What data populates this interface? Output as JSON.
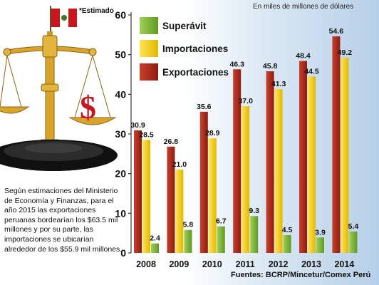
{
  "header": {
    "estimado_note": "*Estimado",
    "units": "En miles de millones de dólares"
  },
  "note_text": "Según estimaciones del Ministerio de Economía y Finanzas, para el año 2015 las exportaciones peruanas bordearían los $63.5 mil millones y por su parte, las importaciones se ubicarían alrededor de los $55.9 mil millones.",
  "source": "Fuentes: BCRP/Mincetur/Comex Perú",
  "illustration": {
    "icon": "scale-with-dollar-and-peru-flag-icon"
  },
  "chart_data": {
    "type": "bar",
    "categories": [
      "2008",
      "2009",
      "2010",
      "2011",
      "2012",
      "2013",
      "2014"
    ],
    "series": [
      {
        "name": "Exportaciones",
        "color": "#b32a1c",
        "values": [
          30.9,
          26.8,
          35.6,
          46.3,
          45.8,
          48.4,
          54.6
        ]
      },
      {
        "name": "Importaciones",
        "color": "#f0cc10",
        "values": [
          28.5,
          21.0,
          28.9,
          37.0,
          41.3,
          44.5,
          49.2
        ]
      },
      {
        "name": "Superávit",
        "color": "#7db83a",
        "values": [
          2.4,
          5.8,
          6.7,
          9.3,
          4.5,
          3.9,
          5.4
        ]
      }
    ],
    "value_labels": [
      [
        "30.9",
        "26.8",
        "35.6",
        "46.3",
        "45.8",
        "48.4",
        "54.6"
      ],
      [
        "28.5",
        "21.0",
        "28.9",
        "37.0",
        "41.3",
        "44.5",
        "49.2"
      ],
      [
        "2.4",
        "5.8",
        "6.7",
        "9.3",
        "4.5",
        "3.9",
        "5.4"
      ]
    ],
    "legend": [
      "Superávit",
      "Importaciones",
      "Exportaciones"
    ],
    "legend_placement": "top-left",
    "y_ticks": [
      "0",
      "10",
      "20",
      "30",
      "40",
      "50",
      "60"
    ],
    "ylim": [
      0,
      60
    ],
    "grid": false,
    "title": "",
    "xlabel": "",
    "ylabel": ""
  }
}
